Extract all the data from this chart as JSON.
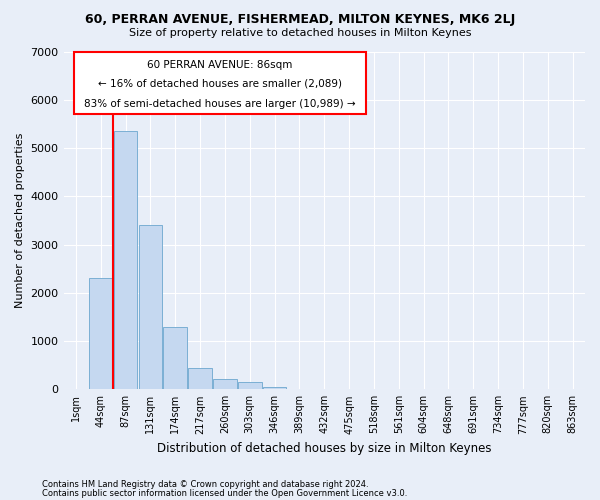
{
  "title1": "60, PERRAN AVENUE, FISHERMEAD, MILTON KEYNES, MK6 2LJ",
  "title2": "Size of property relative to detached houses in Milton Keynes",
  "xlabel": "Distribution of detached houses by size in Milton Keynes",
  "ylabel": "Number of detached properties",
  "bar_labels": [
    "1sqm",
    "44sqm",
    "87sqm",
    "131sqm",
    "174sqm",
    "217sqm",
    "260sqm",
    "303sqm",
    "346sqm",
    "389sqm",
    "432sqm",
    "475sqm",
    "518sqm",
    "561sqm",
    "604sqm",
    "648sqm",
    "691sqm",
    "734sqm",
    "777sqm",
    "820sqm",
    "863sqm"
  ],
  "bar_values": [
    0,
    2300,
    5350,
    3400,
    1300,
    450,
    210,
    150,
    50,
    0,
    0,
    0,
    0,
    0,
    0,
    0,
    0,
    0,
    0,
    0,
    0
  ],
  "bar_color": "#c5d8f0",
  "bar_edgecolor": "#7bafd4",
  "property_line_label": "60 PERRAN AVENUE: 86sqm",
  "annotation_line1": "← 16% of detached houses are smaller (2,089)",
  "annotation_line2": "83% of semi-detached houses are larger (10,989) →",
  "ylim": [
    0,
    7000
  ],
  "yticks": [
    0,
    1000,
    2000,
    3000,
    4000,
    5000,
    6000,
    7000
  ],
  "footnote1": "Contains HM Land Registry data © Crown copyright and database right 2024.",
  "footnote2": "Contains public sector information licensed under the Open Government Licence v3.0.",
  "bg_color": "#e8eef8",
  "grid_color": "#ffffff",
  "figsize": [
    6.0,
    5.0
  ],
  "dpi": 100
}
